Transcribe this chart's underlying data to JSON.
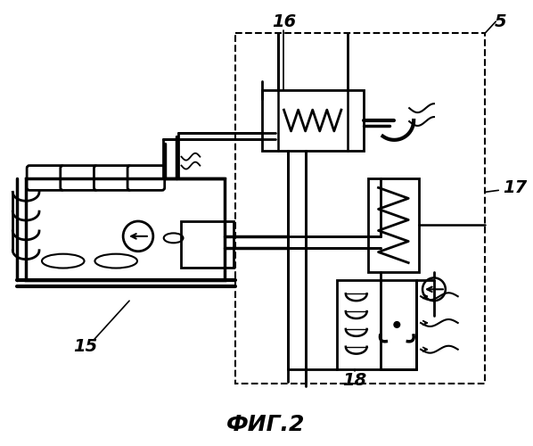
{
  "title": "ФИГ.2",
  "title_fontsize": 18,
  "background_color": "#ffffff",
  "line_color": "#000000",
  "label_16": "16",
  "label_5": "5",
  "label_15": "15",
  "label_17": "17",
  "label_18": "18"
}
